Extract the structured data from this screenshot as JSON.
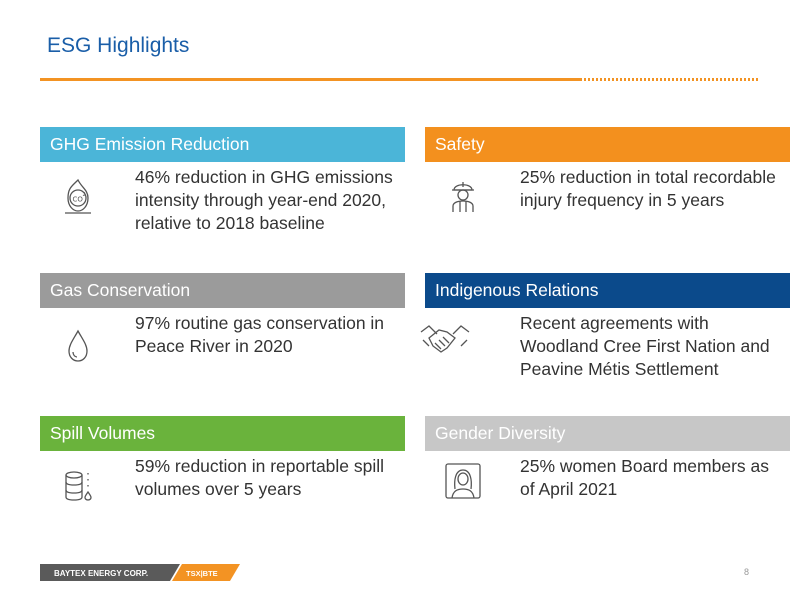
{
  "slide": {
    "title": "ESG Highlights",
    "page_number": "8"
  },
  "cards": [
    {
      "header": "GHG Emission Reduction",
      "header_color": "#4bb5d8",
      "icon": "co2-flame-icon",
      "text": "46% reduction in GHG emissions intensity through year-end 2020, relative to 2018 baseline"
    },
    {
      "header": "Safety",
      "header_color": "#f3901e",
      "icon": "hard-hat-worker-icon",
      "text": "25% reduction in total recordable injury frequency in 5 years"
    },
    {
      "header": "Gas Conservation",
      "header_color": "#9b9b9b",
      "icon": "droplet-icon",
      "text": "97% routine gas conservation in Peace River in 2020"
    },
    {
      "header": "Indigenous Relations",
      "header_color": "#0b4a8b",
      "icon": "handshake-icon",
      "text": "Recent agreements with Woodland Cree First Nation and Peavine Métis Settlement"
    },
    {
      "header": "Spill Volumes",
      "header_color": "#6ab33c",
      "icon": "barrel-drip-icon",
      "text": "59% reduction in reportable spill volumes over 5 years"
    },
    {
      "header": "Gender Diversity",
      "header_color": "#c7c7c7",
      "icon": "woman-portrait-icon",
      "text": "25% women Board members as of April 2021"
    }
  ],
  "footer": {
    "company": "BAYTEX ENERGY CORP.",
    "ticker": "TSX|BTE",
    "colors": {
      "dark": "#5a5a5a",
      "orange": "#f39323"
    }
  }
}
